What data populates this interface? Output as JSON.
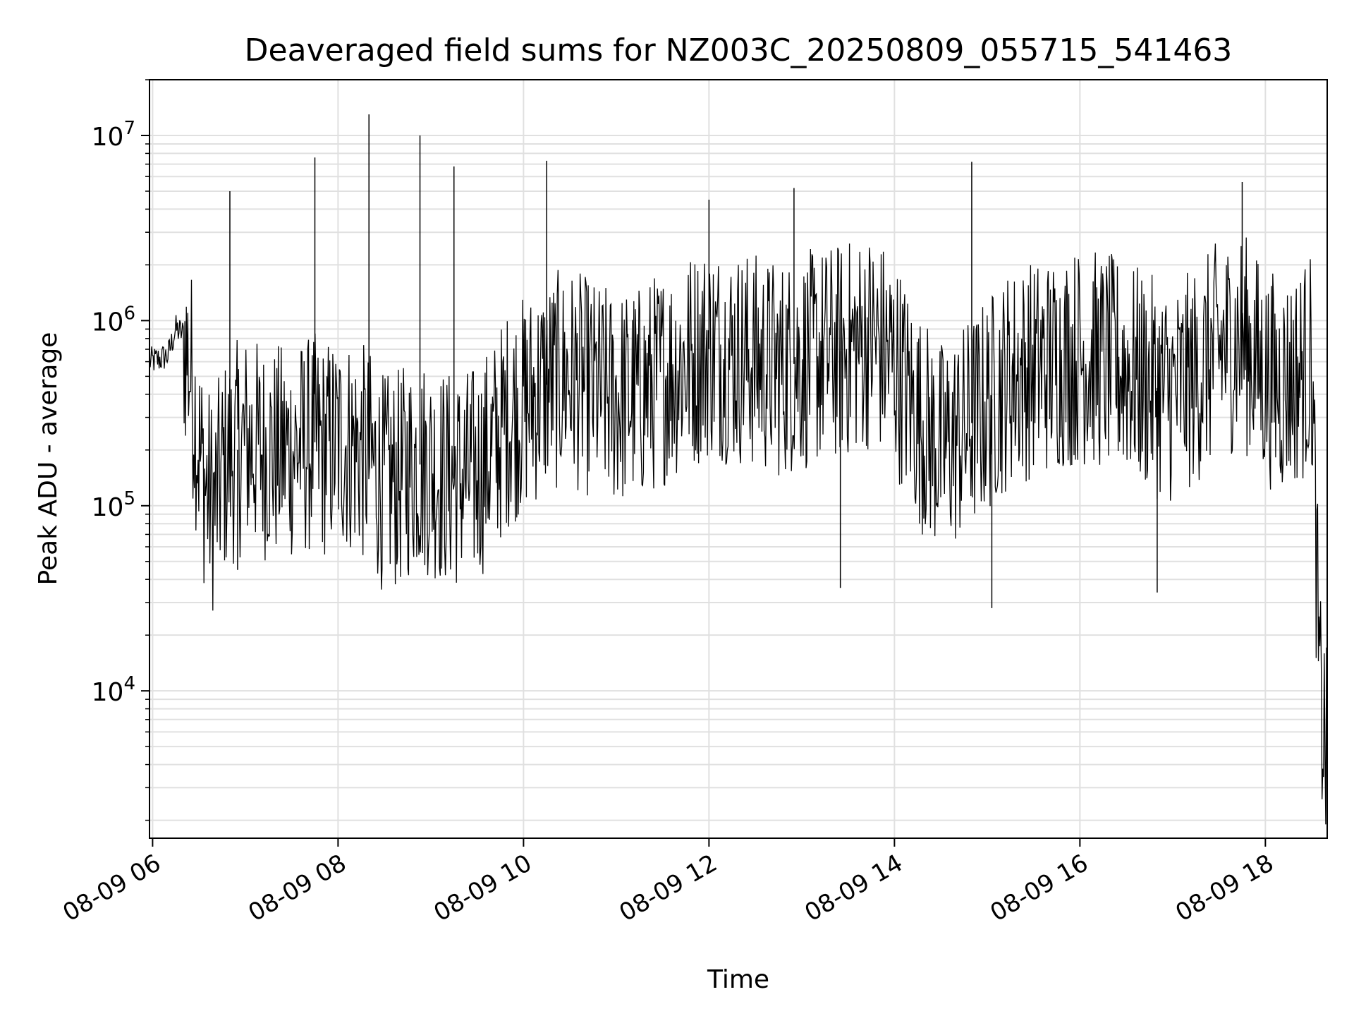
{
  "chart_data": {
    "type": "line",
    "title": "Deaveraged field sums for NZ003C_20250809_055715_541463",
    "xlabel": "Time",
    "ylabel": "Peak ADU - average",
    "y_scale": "log",
    "ylim": [
      1600,
      20000000
    ],
    "xlim": [
      "2025-08-09 05:58",
      "2025-08-09 18:40"
    ],
    "grid": true,
    "line_color": "#000000",
    "grid_color": "#e0e0e0",
    "x_ticks": [
      {
        "value": "2025-08-09 06:00",
        "label": "08-09 06"
      },
      {
        "value": "2025-08-09 08:00",
        "label": "08-09 08"
      },
      {
        "value": "2025-08-09 10:00",
        "label": "08-09 10"
      },
      {
        "value": "2025-08-09 12:00",
        "label": "08-09 12"
      },
      {
        "value": "2025-08-09 14:00",
        "label": "08-09 14"
      },
      {
        "value": "2025-08-09 16:00",
        "label": "08-09 16"
      },
      {
        "value": "2025-08-09 18:00",
        "label": "08-09 18"
      }
    ],
    "y_ticks": [
      {
        "value": 10000,
        "base": "10",
        "exp": "4"
      },
      {
        "value": 100000,
        "base": "10",
        "exp": "5"
      },
      {
        "value": 1000000,
        "base": "10",
        "exp": "6"
      },
      {
        "value": 10000000,
        "base": "10",
        "exp": "7"
      }
    ],
    "series": [
      {
        "x": [
          "2025-08-09 05:58",
          "2025-08-09 06:05",
          "2025-08-09 06:10",
          "2025-08-09 06:15",
          "2025-08-09 06:20",
          "2025-08-09 06:25",
          "2025-08-09 06:30",
          "2025-08-09 06:35",
          "2025-08-09 06:40",
          "2025-08-09 06:45",
          "2025-08-09 06:50",
          "2025-08-09 06:55",
          "2025-08-09 07:00",
          "2025-08-09 07:10",
          "2025-08-09 07:20",
          "2025-08-09 07:30",
          "2025-08-09 07:40",
          "2025-08-09 07:45",
          "2025-08-09 07:50",
          "2025-08-09 08:00",
          "2025-08-09 08:10",
          "2025-08-09 08:20",
          "2025-08-09 08:30",
          "2025-08-09 08:40",
          "2025-08-09 08:50",
          "2025-08-09 09:00",
          "2025-08-09 09:10",
          "2025-08-09 09:20",
          "2025-08-09 09:30",
          "2025-08-09 09:40",
          "2025-08-09 09:50",
          "2025-08-09 10:00",
          "2025-08-09 10:15",
          "2025-08-09 10:30",
          "2025-08-09 10:45",
          "2025-08-09 11:00",
          "2025-08-09 11:15",
          "2025-08-09 11:30",
          "2025-08-09 11:45",
          "2025-08-09 12:00",
          "2025-08-09 12:15",
          "2025-08-09 12:30",
          "2025-08-09 12:45",
          "2025-08-09 13:00",
          "2025-08-09 13:15",
          "2025-08-09 13:30",
          "2025-08-09 13:45",
          "2025-08-09 14:00",
          "2025-08-09 14:15",
          "2025-08-09 14:30",
          "2025-08-09 14:45",
          "2025-08-09 15:00",
          "2025-08-09 15:15",
          "2025-08-09 15:30",
          "2025-08-09 15:45",
          "2025-08-09 16:00",
          "2025-08-09 16:15",
          "2025-08-09 16:30",
          "2025-08-09 16:45",
          "2025-08-09 17:00",
          "2025-08-09 17:15",
          "2025-08-09 17:30",
          "2025-08-09 17:45",
          "2025-08-09 18:00",
          "2025-08-09 18:10",
          "2025-08-09 18:20",
          "2025-08-09 18:30",
          "2025-08-09 18:35",
          "2025-08-09 18:40"
        ],
        "y": [
          600000,
          620000,
          650000,
          900000,
          850000,
          500000,
          200000,
          120000,
          100000,
          150000,
          180000,
          200000,
          220000,
          200000,
          190000,
          200000,
          210000,
          220000,
          200000,
          220000,
          210000,
          180000,
          130000,
          140000,
          170000,
          160000,
          140000,
          140000,
          150000,
          200000,
          300000,
          350000,
          450000,
          500000,
          420000,
          380000,
          400000,
          500000,
          600000,
          700000,
          650000,
          600000,
          550000,
          600000,
          650000,
          700000,
          800000,
          600000,
          300000,
          200000,
          250000,
          350000,
          500000,
          550000,
          600000,
          650000,
          600000,
          550000,
          450000,
          400000,
          500000,
          700000,
          800000,
          500000,
          450000,
          500000,
          600000,
          10000,
          4000
        ],
        "spikes": [
          {
            "x": "2025-08-09 06:50",
            "y": 5000000
          },
          {
            "x": "2025-08-09 07:45",
            "y": 7600000
          },
          {
            "x": "2025-08-09 08:20",
            "y": 13000000
          },
          {
            "x": "2025-08-09 08:53",
            "y": 10000000
          },
          {
            "x": "2025-08-09 09:15",
            "y": 6800000
          },
          {
            "x": "2025-08-09 10:15",
            "y": 7300000
          },
          {
            "x": "2025-08-09 12:00",
            "y": 4500000
          },
          {
            "x": "2025-08-09 12:55",
            "y": 5200000
          },
          {
            "x": "2025-08-09 14:50",
            "y": 7200000
          },
          {
            "x": "2025-08-09 17:45",
            "y": 5600000
          },
          {
            "x": "2025-08-09 13:25",
            "y": 36000
          },
          {
            "x": "2025-08-09 15:03",
            "y": 28000
          },
          {
            "x": "2025-08-09 06:55",
            "y": 45000
          },
          {
            "x": "2025-08-09 16:50",
            "y": 34000
          }
        ]
      }
    ]
  }
}
